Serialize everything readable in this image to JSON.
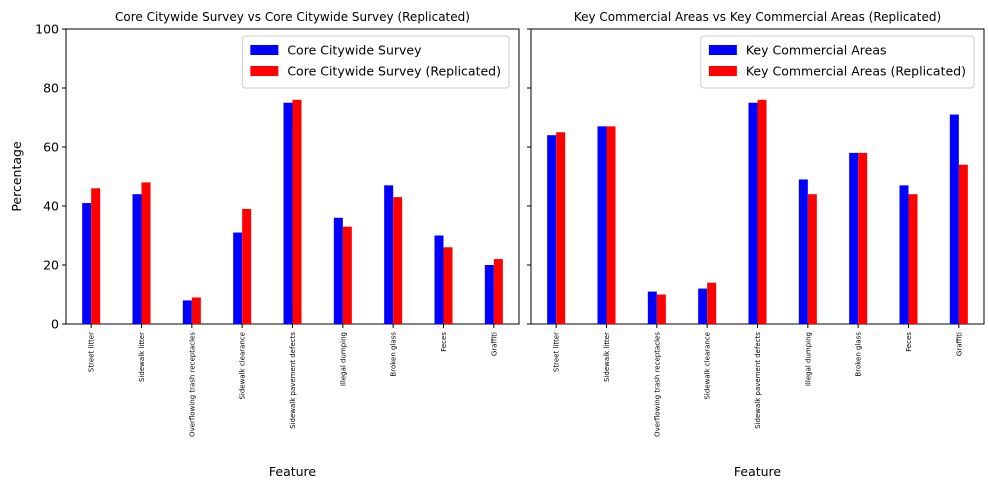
{
  "chart_data": [
    {
      "type": "bar",
      "title": "Core Citywide Survey vs Core Citywide Survey (Replicated)",
      "xlabel": "Feature",
      "ylabel": "Percentage",
      "ylim": [
        0,
        100
      ],
      "yticks": [
        0,
        20,
        40,
        60,
        80,
        100
      ],
      "legend_position": "top-right",
      "categories": [
        "Street litter",
        "Sidewalk litter",
        "Overflowing trash receptacles",
        "Sidewalk clearance",
        "Sidewalk pavement defects",
        "Illegal dumping",
        "Broken glass",
        "Feces",
        "Graffiti"
      ],
      "series": [
        {
          "name": "Core Citywide Survey",
          "color": "#0000ff",
          "values": [
            41,
            44,
            8,
            31,
            75,
            36,
            47,
            30,
            20
          ]
        },
        {
          "name": "Core Citywide Survey (Replicated)",
          "color": "#ff0000",
          "values": [
            46,
            48,
            9,
            39,
            76,
            33,
            43,
            26,
            22
          ]
        }
      ]
    },
    {
      "type": "bar",
      "title": "Key Commercial Areas vs Key Commercial Areas (Replicated)",
      "xlabel": "Feature",
      "ylabel": "",
      "ylim": [
        0,
        100
      ],
      "yticks": [
        0,
        20,
        40,
        60,
        80,
        100
      ],
      "legend_position": "top-right",
      "categories": [
        "Street litter",
        "Sidewalk litter",
        "Overflowing trash receptacles",
        "Sidewalk clearance",
        "Sidewalk pavement defects",
        "Illegal dumping",
        "Broken glass",
        "Feces",
        "Graffiti"
      ],
      "series": [
        {
          "name": "Key Commercial Areas",
          "color": "#0000ff",
          "values": [
            64,
            67,
            11,
            12,
            75,
            49,
            58,
            47,
            71
          ]
        },
        {
          "name": "Key Commercial Areas (Replicated)",
          "color": "#ff0000",
          "values": [
            65,
            67,
            10,
            14,
            76,
            44,
            58,
            44,
            54
          ]
        }
      ]
    }
  ]
}
